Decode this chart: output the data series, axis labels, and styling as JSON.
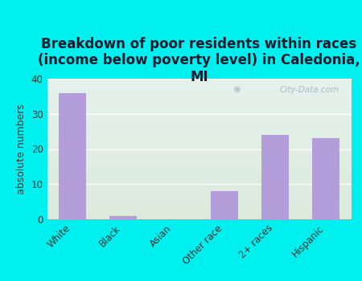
{
  "title": "Breakdown of poor residents within races\n(income below poverty level) in Caledonia,\nMI",
  "categories": [
    "White",
    "Black",
    "Asian",
    "Other race",
    "2+ races",
    "Hispanic"
  ],
  "values": [
    36,
    1,
    0,
    8,
    24,
    23
  ],
  "bar_color": "#b39ddb",
  "ylabel": "absolute numbers",
  "ylim": [
    0,
    40
  ],
  "yticks": [
    0,
    10,
    20,
    30,
    40
  ],
  "background_color": "#00f0f0",
  "plot_bg_topleft": "#e8f5f0",
  "plot_bg_topright": "#e0eeee",
  "plot_bg_bottom": "#ddeedd",
  "title_fontsize": 12,
  "axis_label_fontsize": 9,
  "tick_fontsize": 8.5,
  "watermark": "City-Data.com"
}
